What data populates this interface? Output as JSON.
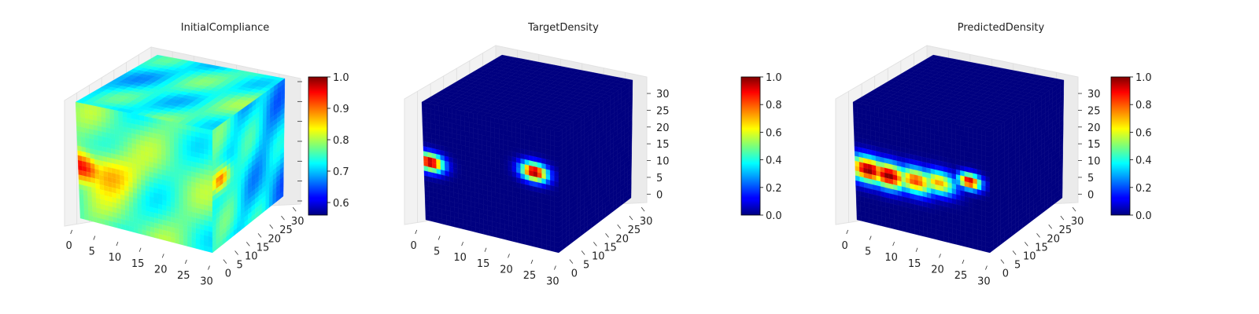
{
  "chart_data": [
    {
      "type": "heatmap",
      "title": "InitialCompliance",
      "x_ticks": [
        "0",
        "5",
        "10",
        "15",
        "20",
        "25",
        "30"
      ],
      "y_ticks": [
        "0",
        "5",
        "10",
        "15",
        "20",
        "25",
        "30"
      ],
      "z_ticks": [],
      "colorbar": {
        "ticks": [
          "0.6",
          "0.7",
          "0.8",
          "0.9",
          "1.0"
        ],
        "min": 0.56,
        "max": 1.0,
        "colormap": "jet"
      },
      "hotspots": [
        {
          "face": "left",
          "u": 0.03,
          "v": 0.55,
          "value": 0.97,
          "spread": 0.12
        },
        {
          "face": "left",
          "u": 0.2,
          "v": 0.55,
          "value": 0.88,
          "spread": 0.16
        },
        {
          "face": "front",
          "u": 0.12,
          "v": 0.45,
          "value": 0.98,
          "spread": 0.09
        },
        {
          "face": "front",
          "u": 0.25,
          "v": 0.1,
          "value": 0.67,
          "spread": 0.2
        }
      ],
      "base_value": 0.76
    },
    {
      "type": "heatmap",
      "title": "TargetDensity",
      "x_ticks": [
        "0",
        "5",
        "10",
        "15",
        "20",
        "25",
        "30"
      ],
      "y_ticks": [
        "0",
        "5",
        "10",
        "15",
        "20",
        "25",
        "30"
      ],
      "z_ticks": [
        "0",
        "5",
        "10",
        "15",
        "20",
        "25",
        "30"
      ],
      "colorbar": {
        "ticks": [
          "0.0",
          "0.2",
          "0.4",
          "0.6",
          "0.8",
          "1.0"
        ],
        "min": 0.0,
        "max": 1.0,
        "colormap": "jet"
      },
      "hotspots": [
        {
          "face": "left",
          "u": 0.05,
          "v": 0.5,
          "value": 1.0,
          "spread": 0.07
        },
        {
          "face": "left",
          "u": 0.82,
          "v": 0.38,
          "value": 1.0,
          "spread": 0.07
        }
      ],
      "base_value": 0.0
    },
    {
      "type": "heatmap",
      "title": "PredictedDensity",
      "x_ticks": [
        "0",
        "5",
        "10",
        "15",
        "20",
        "25",
        "30"
      ],
      "y_ticks": [
        "0",
        "5",
        "10",
        "15",
        "20",
        "25",
        "30"
      ],
      "z_ticks": [
        "0",
        "5",
        "10",
        "15",
        "20",
        "25",
        "30"
      ],
      "colorbar": {
        "ticks": [
          "0.0",
          "0.2",
          "0.4",
          "0.6",
          "0.8",
          "1.0"
        ],
        "min": 0.0,
        "max": 1.0,
        "colormap": "jet"
      },
      "hotspots": [
        {
          "face": "left",
          "u": 0.1,
          "v": 0.55,
          "value": 1.0,
          "spread": 0.1
        },
        {
          "face": "left",
          "u": 0.25,
          "v": 0.56,
          "value": 1.0,
          "spread": 0.1
        },
        {
          "face": "left",
          "u": 0.45,
          "v": 0.55,
          "value": 0.82,
          "spread": 0.1
        },
        {
          "face": "left",
          "u": 0.62,
          "v": 0.52,
          "value": 0.72,
          "spread": 0.09
        },
        {
          "face": "left",
          "u": 0.85,
          "v": 0.45,
          "value": 0.95,
          "spread": 0.06
        }
      ],
      "base_value": 0.0
    }
  ]
}
